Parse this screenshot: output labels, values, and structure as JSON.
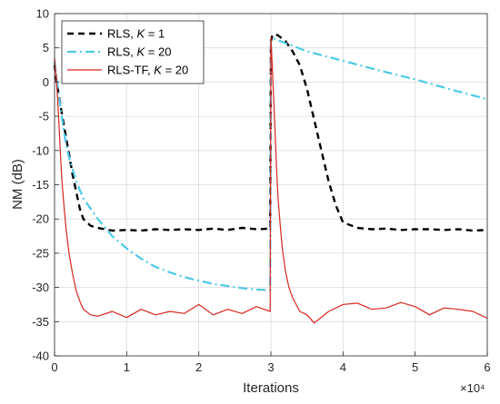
{
  "chart_data": {
    "type": "line",
    "xlabel": "Iterations",
    "ylabel": "NM (dB)",
    "x_exponent_label": "×10⁴",
    "xlim": [
      0,
      6
    ],
    "ylim": [
      -40,
      10
    ],
    "xticks": [
      "0",
      "1",
      "2",
      "3",
      "4",
      "5",
      "6"
    ],
    "yticks": [
      "-40",
      "-35",
      "-30",
      "-25",
      "-20",
      "-15",
      "-10",
      "-5",
      "0",
      "5",
      "10"
    ],
    "grid": true,
    "legend_position": "top-left",
    "x_units_note": "Iterations in units of 10^4",
    "series": [
      {
        "name": "RLS, K = 1",
        "name_parts": {
          "prefix": "RLS, ",
          "var": "K",
          "suffix": " = 1"
        },
        "color": "#000000",
        "style": "dashed",
        "x": [
          0,
          0.02,
          0.06,
          0.1,
          0.15,
          0.2,
          0.25,
          0.3,
          0.35,
          0.4,
          0.5,
          0.6,
          0.7,
          0.8,
          1.0,
          1.2,
          1.4,
          1.6,
          1.8,
          2.0,
          2.2,
          2.4,
          2.6,
          2.8,
          2.99,
          3.0,
          3.02,
          3.06,
          3.1,
          3.2,
          3.3,
          3.4,
          3.5,
          3.6,
          3.7,
          3.8,
          3.9,
          4.0,
          4.2,
          4.4,
          4.6,
          4.8,
          5.0,
          5.2,
          5.4,
          5.6,
          5.8,
          6.0
        ],
        "y": [
          2.5,
          0.5,
          -2,
          -4.5,
          -7.5,
          -10.5,
          -13.5,
          -16,
          -18.5,
          -20,
          -21,
          -21.3,
          -21.5,
          -21.7,
          -21.6,
          -21.7,
          -21.5,
          -21.6,
          -21.5,
          -21.6,
          -21.4,
          -21.6,
          -21.3,
          -21.5,
          -21.4,
          6,
          6.8,
          7,
          6.8,
          6,
          4.5,
          2.5,
          -1,
          -5.5,
          -10,
          -14.5,
          -18,
          -20.5,
          -21.3,
          -21.5,
          -21.4,
          -21.6,
          -21.5,
          -21.5,
          -21.6,
          -21.5,
          -21.7,
          -21.6
        ]
      },
      {
        "name": "RLS, K = 20",
        "name_parts": {
          "prefix": "RLS, ",
          "var": "K",
          "suffix": " = 20"
        },
        "color": "#4cc9e6",
        "style": "dashdot",
        "x": [
          0,
          0.03,
          0.06,
          0.1,
          0.15,
          0.2,
          0.3,
          0.4,
          0.5,
          0.6,
          0.8,
          1.0,
          1.2,
          1.4,
          1.6,
          1.8,
          2.0,
          2.2,
          2.4,
          2.6,
          2.8,
          2.99,
          3.0,
          3.05,
          3.5,
          4.0,
          4.5,
          5.0,
          5.5,
          6.0
        ],
        "y": [
          3,
          0.5,
          -2,
          -5,
          -8.5,
          -11,
          -14.5,
          -17,
          -18.5,
          -20,
          -22.5,
          -24.3,
          -25.8,
          -27,
          -27.8,
          -28.5,
          -29,
          -29.5,
          -29.8,
          -30.1,
          -30.3,
          -30.4,
          6.2,
          6.3,
          4.5,
          3.1,
          1.7,
          0.4,
          -1.1,
          -2.5
        ]
      },
      {
        "name": "RLS-TF, K = 20",
        "name_parts": {
          "prefix": "RLS-TF, ",
          "var": "K",
          "suffix": " = 20"
        },
        "color": "#d7261e",
        "style": "solid",
        "x": [
          0,
          0.02,
          0.04,
          0.06,
          0.08,
          0.1,
          0.13,
          0.16,
          0.2,
          0.25,
          0.3,
          0.35,
          0.4,
          0.5,
          0.6,
          0.8,
          1.0,
          1.2,
          1.4,
          1.6,
          1.8,
          2.0,
          2.2,
          2.4,
          2.6,
          2.8,
          2.99,
          3.0,
          3.02,
          3.04,
          3.06,
          3.08,
          3.1,
          3.13,
          3.16,
          3.2,
          3.25,
          3.3,
          3.35,
          3.4,
          3.5,
          3.6,
          3.8,
          4.0,
          4.2,
          4.4,
          4.6,
          4.8,
          5.0,
          5.2,
          5.4,
          5.6,
          5.8,
          5.9,
          6.0
        ],
        "y": [
          3.5,
          1,
          -2,
          -6,
          -10,
          -14,
          -18,
          -21.5,
          -25,
          -28,
          -30.5,
          -32,
          -33.2,
          -34,
          -34.2,
          -33.5,
          -34.4,
          -33.2,
          -34,
          -33.5,
          -33.8,
          -32.5,
          -34,
          -33.2,
          -33.8,
          -32.8,
          -33.5,
          6.5,
          2,
          -3,
          -8,
          -13,
          -17,
          -21,
          -24.5,
          -27.5,
          -30,
          -31.5,
          -32.5,
          -33.5,
          -34,
          -35.2,
          -33.5,
          -32.5,
          -32.3,
          -33.2,
          -33,
          -32.2,
          -32.8,
          -34,
          -33,
          -33.2,
          -33.5,
          -34,
          -34.5
        ]
      }
    ]
  }
}
